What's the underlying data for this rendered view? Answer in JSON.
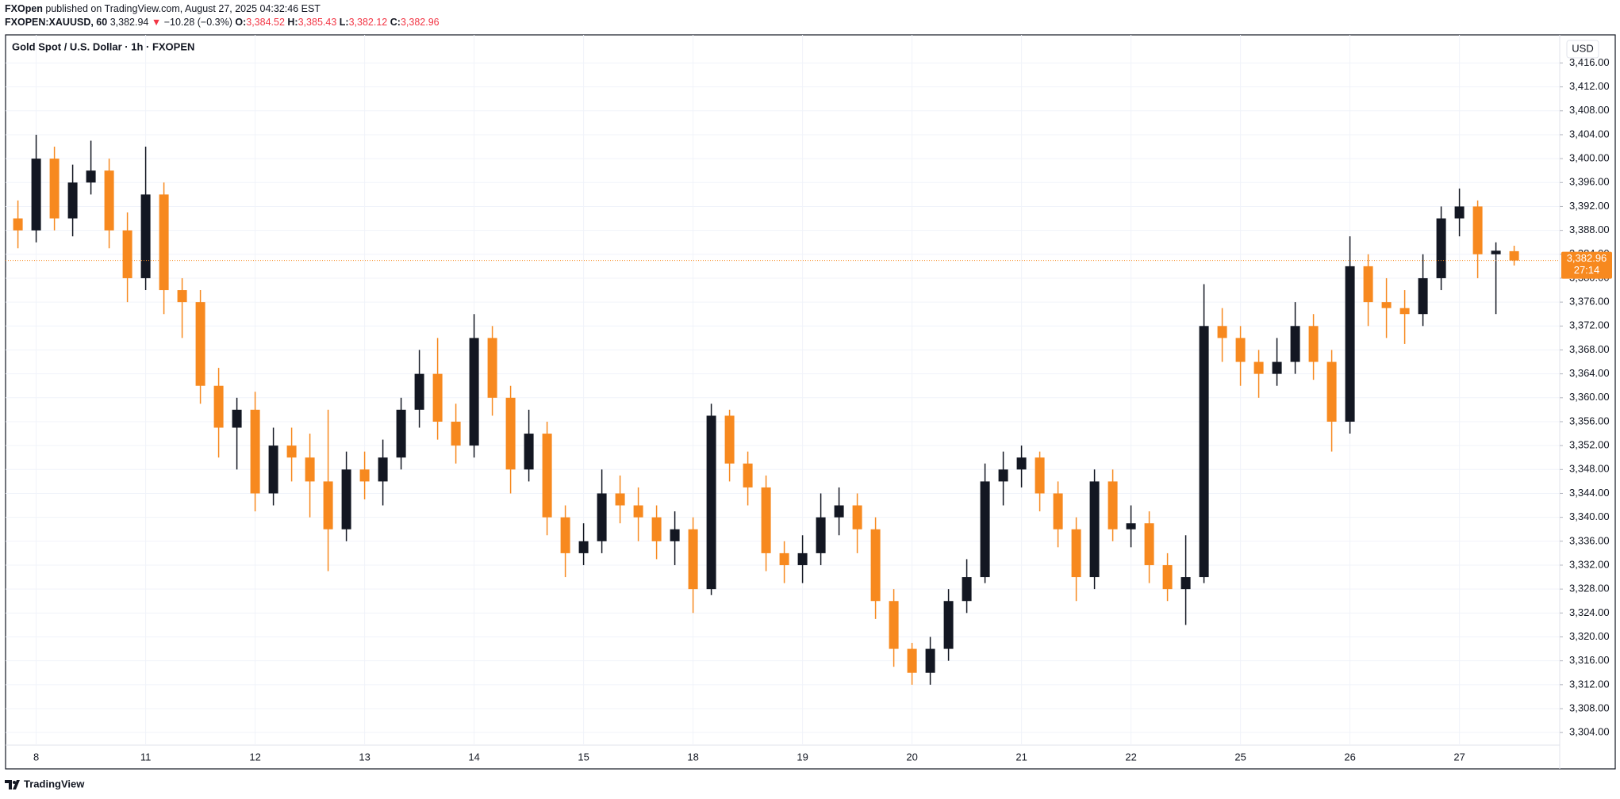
{
  "header": {
    "publisher": "FXOpen",
    "published": "published on TradingView.com, August 27, 2025 04:32:46 EST",
    "symbol": "FXOPEN:XAUUSD, 60",
    "last": "3,382.94",
    "arrow": "▼",
    "change": "−10.28 (−0.3%)",
    "o_label": "O:",
    "o": "3,384.52",
    "h_label": "H:",
    "h": "3,385.43",
    "l_label": "L:",
    "l": "3,382.12",
    "c_label": "C:",
    "c": "3,382.96"
  },
  "footer": {
    "brand": "TradingView"
  },
  "chart_data": {
    "type": "candlestick",
    "title": "Gold Spot / U.S. Dollar · 1h · FXOPEN",
    "currency": "USD",
    "price_label": "3,382.96",
    "countdown": "27:14",
    "up_color": "#131722",
    "down_color": "#f7891f",
    "grid": true,
    "categories": [
      null,
      "8",
      null,
      null,
      null,
      null,
      null,
      "11",
      null,
      null,
      null,
      null,
      null,
      "12",
      null,
      null,
      null,
      null,
      null,
      "13",
      null,
      null,
      null,
      null,
      null,
      "14",
      null,
      null,
      null,
      null,
      null,
      "15",
      null,
      null,
      null,
      null,
      null,
      "18",
      null,
      null,
      null,
      null,
      null,
      "19",
      null,
      null,
      null,
      null,
      null,
      "20",
      null,
      null,
      null,
      null,
      null,
      "21",
      null,
      null,
      null,
      null,
      null,
      "22",
      null,
      null,
      null,
      null,
      null,
      "25",
      null,
      null,
      null,
      null,
      null,
      "26",
      null,
      null,
      null,
      null,
      null,
      "27",
      null,
      null,
      null
    ],
    "open": [
      3390,
      3388,
      3400,
      3390,
      3396,
      3398,
      3388,
      3380,
      3394,
      3378,
      3376,
      3362,
      3355,
      3358,
      3344,
      3352,
      3350,
      3346,
      3338,
      3348,
      3346,
      3350,
      3358,
      3364,
      3356,
      3352,
      3370,
      3360,
      3348,
      3354,
      3340,
      3334,
      3336,
      3344,
      3342,
      3340,
      3336,
      3338,
      3328,
      3357,
      3349,
      3345,
      3334,
      3332,
      3334,
      3340,
      3342,
      3338,
      3326,
      3318,
      3314,
      3318,
      3326,
      3330,
      3346,
      3348,
      3350,
      3344,
      3338,
      3330,
      3346,
      3338,
      3339,
      3332,
      3328,
      3330,
      3372,
      3370,
      3366,
      3364,
      3366,
      3372,
      3366,
      3356,
      3382,
      3376,
      3375,
      3374,
      3380,
      3390,
      3392,
      3384,
      3384.52
    ],
    "high": [
      3393,
      3404,
      3402,
      3399,
      3403,
      3400,
      3391,
      3402,
      3396,
      3380,
      3378,
      3365,
      3360,
      3361,
      3355,
      3355,
      3354,
      3358,
      3351,
      3351,
      3353,
      3360,
      3368,
      3370,
      3359,
      3374,
      3372,
      3362,
      3358,
      3356,
      3342,
      3339,
      3348,
      3347,
      3345,
      3342,
      3341,
      3340,
      3359,
      3358,
      3351,
      3347,
      3336,
      3337,
      3344,
      3345,
      3344,
      3340,
      3328,
      3319,
      3320,
      3328,
      3333,
      3349,
      3351,
      3352,
      3351,
      3346,
      3340,
      3348,
      3348,
      3342,
      3341,
      3334,
      3337,
      3379,
      3375,
      3372,
      3368,
      3370,
      3376,
      3374,
      3368,
      3387,
      3384,
      3380,
      3378,
      3384,
      3392,
      3395,
      3393,
      3386,
      3385.43
    ],
    "low": [
      3385,
      3386,
      3388,
      3387,
      3394,
      3385,
      3376,
      3378,
      3374,
      3370,
      3359,
      3350,
      3348,
      3341,
      3342,
      3346,
      3340,
      3331,
      3336,
      3343,
      3342,
      3348,
      3355,
      3353,
      3349,
      3350,
      3357,
      3344,
      3346,
      3337,
      3330,
      3332,
      3334,
      3339,
      3336,
      3333,
      3332,
      3324,
      3327,
      3346,
      3342,
      3331,
      3329,
      3329,
      3332,
      3337,
      3334,
      3323,
      3315,
      3312,
      3312,
      3316,
      3324,
      3329,
      3342,
      3345,
      3341,
      3335,
      3326,
      3328,
      3336,
      3335,
      3329,
      3326,
      3322,
      3329,
      3366,
      3362,
      3360,
      3362,
      3364,
      3363,
      3351,
      3354,
      3372,
      3370,
      3369,
      3372,
      3378,
      3387,
      3380,
      3374,
      3382.12
    ],
    "close": [
      3388,
      3400,
      3390,
      3396,
      3398,
      3388,
      3380,
      3394,
      3378,
      3376,
      3362,
      3355,
      3358,
      3344,
      3352,
      3350,
      3346,
      3338,
      3348,
      3346,
      3350,
      3358,
      3364,
      3356,
      3352,
      3370,
      3360,
      3348,
      3354,
      3340,
      3334,
      3336,
      3344,
      3342,
      3340,
      3336,
      3338,
      3328,
      3357,
      3349,
      3345,
      3334,
      3332,
      3334,
      3340,
      3342,
      3338,
      3326,
      3318,
      3314,
      3318,
      3326,
      3330,
      3346,
      3348,
      3350,
      3344,
      3338,
      3330,
      3346,
      3338,
      3339,
      3332,
      3328,
      3330,
      3372,
      3370,
      3366,
      3364,
      3366,
      3372,
      3366,
      3356,
      3382,
      3376,
      3375,
      3374,
      3380,
      3390,
      3392,
      3384,
      3384.6,
      3382.96
    ],
    "ylim": [
      3301.9,
      3420.7
    ],
    "yticks": [
      {
        "value": 3304,
        "label": "3,304.00"
      },
      {
        "value": 3308,
        "label": "3,308.00"
      },
      {
        "value": 3312,
        "label": "3,312.00"
      },
      {
        "value": 3316,
        "label": "3,316.00"
      },
      {
        "value": 3320,
        "label": "3,320.00"
      },
      {
        "value": 3324,
        "label": "3,324.00"
      },
      {
        "value": 3328,
        "label": "3,328.00"
      },
      {
        "value": 3332,
        "label": "3,332.00"
      },
      {
        "value": 3336,
        "label": "3,336.00"
      },
      {
        "value": 3340,
        "label": "3,340.00"
      },
      {
        "value": 3344,
        "label": "3,344.00"
      },
      {
        "value": 3348,
        "label": "3,348.00"
      },
      {
        "value": 3352,
        "label": "3,352.00"
      },
      {
        "value": 3356,
        "label": "3,356.00"
      },
      {
        "value": 3360,
        "label": "3,360.00"
      },
      {
        "value": 3364,
        "label": "3,364.00"
      },
      {
        "value": 3368,
        "label": "3,368.00"
      },
      {
        "value": 3372,
        "label": "3,372.00"
      },
      {
        "value": 3376,
        "label": "3,376.00"
      },
      {
        "value": 3380,
        "label": "3,380.00"
      },
      {
        "value": 3384,
        "label": "3,384.00"
      },
      {
        "value": 3388,
        "label": "3,388.00"
      },
      {
        "value": 3392,
        "label": "3,392.00"
      },
      {
        "value": 3396,
        "label": "3,396.00"
      },
      {
        "value": 3400,
        "label": "3,400.00"
      },
      {
        "value": 3404,
        "label": "3,404.00"
      },
      {
        "value": 3408,
        "label": "3,408.00"
      },
      {
        "value": 3412,
        "label": "3,412.00"
      },
      {
        "value": 3416,
        "label": "3,416.00"
      }
    ]
  }
}
